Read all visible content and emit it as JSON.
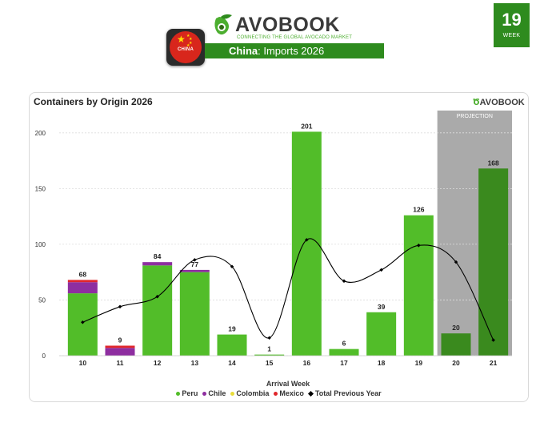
{
  "header": {
    "flag_label": "CHINA",
    "logo_word": "AVOBOOK",
    "logo_tagline": "CONNECTING THE GLOBAL AVOCADO MARKET",
    "title_country": "China",
    "title_rest": ": Imports 2026",
    "week_number": "19",
    "week_label": "WEEK"
  },
  "colors": {
    "Peru": "#52bd29",
    "Chile": "#8e2ea0",
    "Colombia": "#e8dc3a",
    "Mexico": "#e0262b",
    "Total Previous Year": "#000000",
    "projection_bar": "#3a8a1e",
    "projection_bg": "#aaaaaa"
  },
  "chart_data": {
    "type": "bar",
    "title": "Containers by Origin 2026",
    "xlabel": "Arrival Week",
    "ylabel": "",
    "ylim": [
      0,
      220
    ],
    "yticks": [
      0,
      50,
      100,
      150,
      200
    ],
    "categories": [
      "10",
      "11",
      "12",
      "13",
      "14",
      "15",
      "16",
      "17",
      "18",
      "19",
      "20",
      "21"
    ],
    "totals": [
      68,
      9,
      84,
      77,
      19,
      1,
      201,
      6,
      39,
      126,
      20,
      168
    ],
    "series": [
      {
        "name": "Peru",
        "values": [
          56,
          0,
          81,
          75,
          19,
          1,
          201,
          6,
          39,
          126,
          20,
          168
        ]
      },
      {
        "name": "Chile",
        "values": [
          10,
          7,
          3,
          2,
          0,
          0,
          0,
          0,
          0,
          0,
          0,
          0
        ]
      },
      {
        "name": "Colombia",
        "values": [
          0,
          0,
          0,
          0,
          0,
          0,
          0,
          0,
          0,
          0,
          0,
          0
        ]
      },
      {
        "name": "Mexico",
        "values": [
          2,
          2,
          0,
          0,
          0,
          0,
          0,
          0,
          0,
          0,
          0,
          0
        ]
      }
    ],
    "line": {
      "name": "Total Previous Year",
      "values": [
        30,
        44,
        53,
        86,
        80,
        16,
        104,
        67,
        77,
        99,
        84,
        14
      ]
    },
    "projection": {
      "label": "PROJECTION",
      "categories": [
        "20",
        "21"
      ]
    },
    "grid": true,
    "legend": "bottom"
  }
}
